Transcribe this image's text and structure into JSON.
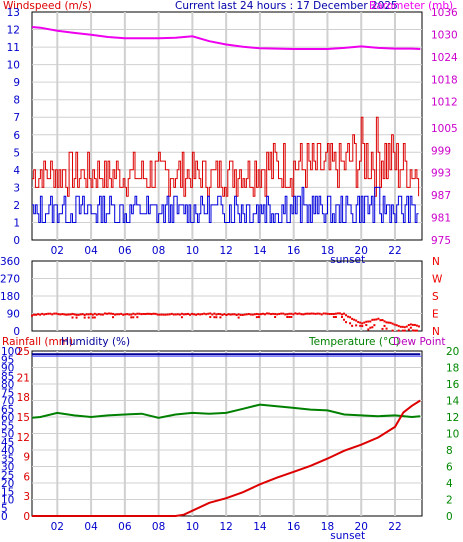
{
  "header": {
    "wind_title": "Windspeed (m/s)",
    "main_title": "Current last 24 hours : 17 December 2025",
    "baro_title": "Barometer (mb)"
  },
  "bottom_header": {
    "rain_title": "Rainfall (mm)",
    "humidity_title": "Humidity (%)",
    "temp_title": "Temperature (°C)",
    "dew_title": "Dew Point"
  },
  "colors": {
    "wind_max": "#dd0000",
    "wind_avg": "#0000dd",
    "barometer": "#ee00ee",
    "direction": "#ee0000",
    "rain": "#dd0000",
    "humidity": "#000099",
    "temperature": "#008000",
    "dew_point": "#bb00bb",
    "left_axis": "#0000cc",
    "right_axis_top": "#cc00cc",
    "right_axis_bottom": "#008800",
    "grid": "#d0d0d0"
  },
  "chart_data": [
    {
      "type": "line",
      "name": "wind-barometer",
      "x_ticks": [
        "02",
        "04",
        "06",
        "08",
        "10",
        "12",
        "14",
        "16",
        "18",
        "20",
        "22"
      ],
      "x_tick_hours": [
        2,
        4,
        6,
        8,
        10,
        12,
        14,
        16,
        18,
        20,
        22
      ],
      "x_annotation": "sunset",
      "sunset_hour": 19.2,
      "xlim": [
        0.5,
        23.6
      ],
      "y_left_ticks": [
        "0",
        "1",
        "2",
        "3",
        "4",
        "5",
        "6",
        "7",
        "8",
        "9",
        "10",
        "11",
        "12",
        "13"
      ],
      "y_left_lim": [
        0,
        13
      ],
      "y_right_ticks": [
        "975",
        "981",
        "987",
        "993",
        "999",
        "1005",
        "1012",
        "1018",
        "1024",
        "1030",
        "1036"
      ],
      "y_right_lim": [
        975,
        1036
      ],
      "series": [
        {
          "name": "Windspeed",
          "axis": "left",
          "x": [
            0.5,
            2.5,
            4.5,
            6.5,
            8.5,
            10.5,
            12.5,
            14.5,
            16.5,
            18.5,
            20.5,
            22.5,
            23.5
          ],
          "y": [
            4.9,
            5.0,
            4.9,
            4.9,
            4.9,
            4.9,
            5.0,
            5.7,
            5.7,
            5.5,
            7.4,
            5.9,
            4.9
          ]
        },
        {
          "name": "Windspeed",
          "axis": "left",
          "x": [
            0.5,
            2.5,
            4.5,
            6.5,
            8.5,
            10.5,
            12.5,
            14.5,
            16.5,
            18.5,
            20.5,
            22.5,
            23.5
          ],
          "y": [
            2.4,
            2.6,
            2.5,
            2.6,
            2.5,
            2.6,
            2.7,
            2.9,
            2.9,
            2.5,
            3.2,
            2.6,
            2.4
          ]
        },
        {
          "name": "Barometer",
          "axis": "right",
          "x": [
            0.5,
            1,
            2,
            3,
            4,
            5,
            6,
            7,
            8,
            9,
            10,
            11,
            12,
            13,
            14,
            15,
            16,
            17,
            18,
            19,
            20,
            21,
            22,
            23,
            23.5
          ],
          "y": [
            1032,
            1031.8,
            1031,
            1030.4,
            1029.9,
            1029.3,
            1029,
            1029,
            1029,
            1029.1,
            1029.5,
            1028.2,
            1027.3,
            1026.7,
            1026.3,
            1026.2,
            1026.1,
            1026.1,
            1026.1,
            1026.4,
            1026.8,
            1026.4,
            1026.2,
            1026.2,
            1026.1
          ]
        }
      ]
    },
    {
      "type": "scatter",
      "name": "wind-direction",
      "y_left_ticks": [
        "0",
        "90",
        "180",
        "270",
        "360"
      ],
      "y_lim": [
        0,
        360
      ],
      "y_right_ticks": [
        "N",
        "E",
        "S",
        "W",
        "N"
      ],
      "series": [
        {
          "name": "Direction",
          "x": [
            0.5,
            1,
            2,
            3,
            4,
            5,
            6,
            7,
            8,
            9,
            10,
            11,
            12,
            13,
            14,
            15,
            16,
            17,
            18,
            19,
            19.5,
            20,
            21,
            22,
            22.5,
            23,
            23.5
          ],
          "y": [
            80,
            85,
            88,
            85,
            85,
            88,
            85,
            88,
            85,
            88,
            85,
            88,
            85,
            85,
            88,
            88,
            88,
            88,
            88,
            88,
            62,
            40,
            62,
            32,
            18,
            35,
            20
          ]
        }
      ]
    },
    {
      "type": "line",
      "name": "rain-humidity-temperature",
      "x_ticks": [
        "02",
        "04",
        "06",
        "08",
        "10",
        "12",
        "14",
        "16",
        "18",
        "20",
        "22"
      ],
      "x_annotation": "sunset",
      "y_left_ticks_humidity": [
        "0",
        "5",
        "10",
        "15",
        "20",
        "25",
        "30",
        "35",
        "40",
        "45",
        "50",
        "55",
        "60",
        "65",
        "70",
        "75",
        "80",
        "85",
        "90",
        "95",
        "100"
      ],
      "y_left_ticks_rain": [
        "0",
        "3",
        "6",
        "9",
        "12",
        "15",
        "18",
        "21",
        "25"
      ],
      "y_right_ticks": [
        "0",
        "2",
        "4",
        "6",
        "8",
        "10",
        "12",
        "14",
        "16",
        "18",
        "20"
      ],
      "y_humidity_lim": [
        0,
        100
      ],
      "y_rain_lim": [
        0,
        25
      ],
      "y_temp_lim": [
        0,
        20
      ],
      "series": [
        {
          "name": "Humidity",
          "axis": "humidity",
          "x": [
            0.5,
            23.5
          ],
          "y": [
            98,
            98
          ]
        },
        {
          "name": "Temperature",
          "axis": "temperature",
          "x": [
            0.5,
            1,
            2,
            3,
            4,
            5,
            6,
            7,
            8,
            9,
            10,
            11,
            12,
            13,
            14,
            15,
            16,
            17,
            18,
            19,
            20,
            21,
            22,
            23,
            23.5
          ],
          "y": [
            11.9,
            12.0,
            12.5,
            12.2,
            12.0,
            12.2,
            12.3,
            12.4,
            11.9,
            12.3,
            12.5,
            12.4,
            12.5,
            13.0,
            13.5,
            13.3,
            13.1,
            12.9,
            12.8,
            12.3,
            12.2,
            12.1,
            12.2,
            12.0,
            12.1
          ]
        },
        {
          "name": "Rainfall",
          "axis": "rain",
          "x": [
            0.5,
            6,
            9,
            9.5,
            10,
            11,
            12,
            13,
            14,
            15,
            16,
            17,
            18,
            19,
            20,
            21,
            22,
            22.5,
            23,
            23.5
          ],
          "y": [
            0,
            0,
            0,
            0.2,
            0.8,
            2.0,
            2.7,
            3.6,
            4.8,
            5.8,
            6.7,
            7.6,
            8.7,
            9.9,
            10.8,
            11.9,
            13.5,
            15.7,
            16.7,
            17.5
          ]
        }
      ]
    }
  ]
}
